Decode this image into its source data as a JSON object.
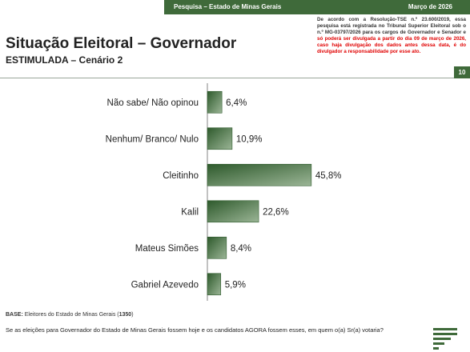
{
  "header": {
    "survey_label": "Pesquisa – Estado de Minas Gerais",
    "date_label": "Março de 2026"
  },
  "notice": {
    "text_black": "De acordo com a Resolução-TSE n.º 23.600/2019, essa pesquisa está registrada no Tribunal Superior Eleitoral sob o n.º MG-03797/2026 para os cargos de Governador e Senador e ",
    "text_red": "só poderá ser divulgada a partir do dia 09 de março de 2026, caso haja divulgação dos dados antes dessa data, é do divulgador a responsabilidade por esse ato."
  },
  "title": "Situação Eleitoral – Governador",
  "subtitle": "ESTIMULADA – Cenário 2",
  "page_number": "10",
  "base": {
    "label": "BASE:",
    "text": "Eleitores do Estado de Minas Gerais (",
    "count": "1350",
    "close": ")"
  },
  "question": "Se as eleições para Governador do Estado de Minas Gerais fossem hoje e os candidatos AGORA fossem esses, em quem o(a) Sr(a) votaria?",
  "colors": {
    "brand_green": "#3f6a3a",
    "bar_dark": "#2e5a2c",
    "bar_light": "#9bb596",
    "notice_red": "#e00000"
  },
  "chart_data": {
    "type": "bar",
    "orientation": "horizontal",
    "categories": [
      "Não sabe/ Não opinou",
      "Nenhum/ Branco/ Nulo",
      "Cleitinho",
      "Kalil",
      "Mateus Simões",
      "Gabriel Azevedo"
    ],
    "values": [
      6.4,
      10.9,
      45.8,
      22.6,
      8.4,
      5.9
    ],
    "value_labels": [
      "6,4%",
      "10,9%",
      "45,8%",
      "22,6%",
      "8,4%",
      "5,9%"
    ],
    "unit": "%",
    "xlim": [
      0,
      100
    ],
    "grid": false,
    "legend": "none"
  }
}
